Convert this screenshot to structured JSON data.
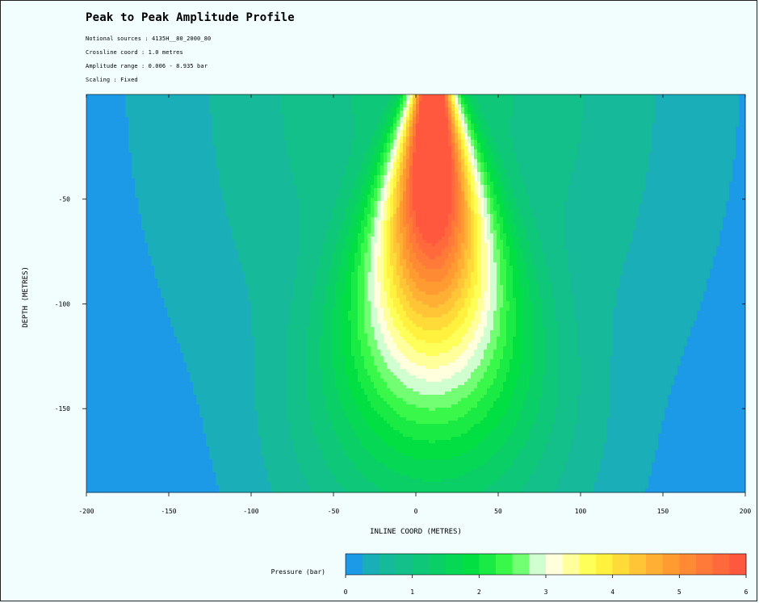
{
  "chart_data": {
    "type": "heatmap",
    "title": "Peak to Peak Amplitude Profile",
    "info_lines": [
      "Notional sources : 4135H__80_2000_80",
      "Crossline coord : 1.0 metres",
      "Amplitude range : 0.006 - 8.935 bar",
      "Scaling : Fixed"
    ],
    "xlabel": "INLINE COORD (METRES)",
    "ylabel": "DEPTH (METRES)",
    "xlim": [
      -200,
      200
    ],
    "ylim": [
      -190,
      0
    ],
    "x_ticks": [
      -200,
      -150,
      -100,
      -50,
      0,
      50,
      100,
      150,
      200
    ],
    "y_ticks": [
      -50,
      -100,
      -150
    ],
    "colorbar": {
      "label": "Pressure (bar)",
      "range": [
        0,
        6
      ],
      "ticks": [
        0,
        1,
        2,
        3,
        4,
        5,
        6
      ],
      "bands": 24
    },
    "field_model": {
      "peak_x": 10,
      "peak_depth": -12,
      "peak_value": 6.0,
      "core_sigma_x": 9.0,
      "spread_x_per_depth": 0.25,
      "core_depth_scale": 70,
      "min_value": 0.02
    },
    "colors": {
      "stops": [
        "#1e90ff",
        "#18b6a4",
        "#12c285",
        "#00e040",
        "#4cff4c",
        "#ffffff",
        "#ffff40",
        "#ffa030",
        "#ff5040"
      ],
      "stop_positions": [
        0,
        0.08,
        0.16,
        0.32,
        0.42,
        0.5,
        0.62,
        0.8,
        1.0
      ]
    }
  }
}
